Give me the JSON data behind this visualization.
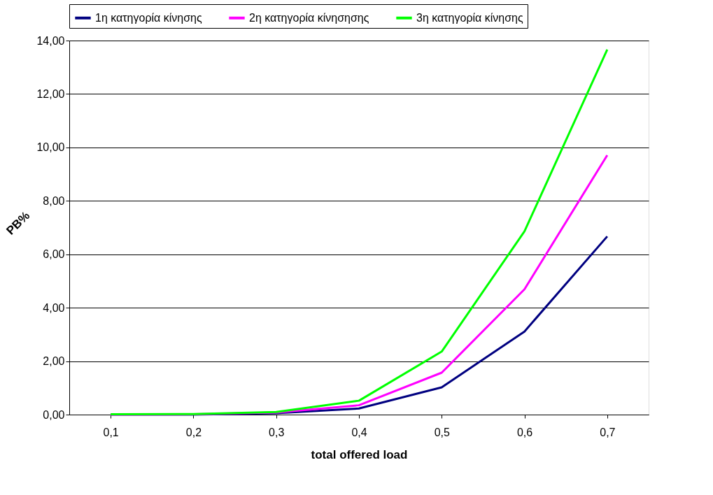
{
  "chart_data": {
    "type": "line",
    "xlabel": "total offered load",
    "ylabel": "PB%",
    "categories": [
      "0,1",
      "0,2",
      "0,3",
      "0,4",
      "0,5",
      "0,6",
      "0,7"
    ],
    "series": [
      {
        "name": "1η κατηγορία κίνησης",
        "color": "#000080",
        "values": [
          0.0,
          0.0,
          0.05,
          0.23,
          1.02,
          3.11,
          6.67
        ]
      },
      {
        "name": "2η κατηγορία κίνησησης",
        "color": "#ff00ff",
        "values": [
          0.0,
          0.01,
          0.08,
          0.35,
          1.57,
          4.69,
          9.71
        ]
      },
      {
        "name": "3η κατηγορία κίνησης",
        "color": "#00ff00",
        "values": [
          0.01,
          0.02,
          0.1,
          0.52,
          2.36,
          6.86,
          13.66
        ]
      }
    ],
    "ylim": [
      0,
      14
    ],
    "yticks": [
      {
        "value": 0,
        "label": "0,00"
      },
      {
        "value": 2,
        "label": "2,00"
      },
      {
        "value": 4,
        "label": "4,00"
      },
      {
        "value": 6,
        "label": "6,00"
      },
      {
        "value": 8,
        "label": "8,00"
      },
      {
        "value": 10,
        "label": "10,00"
      },
      {
        "value": 12,
        "label": "12,00"
      },
      {
        "value": 14,
        "label": "14,00"
      }
    ],
    "grid": "y",
    "legend": "top",
    "marker": "none",
    "line_style": "solid"
  }
}
